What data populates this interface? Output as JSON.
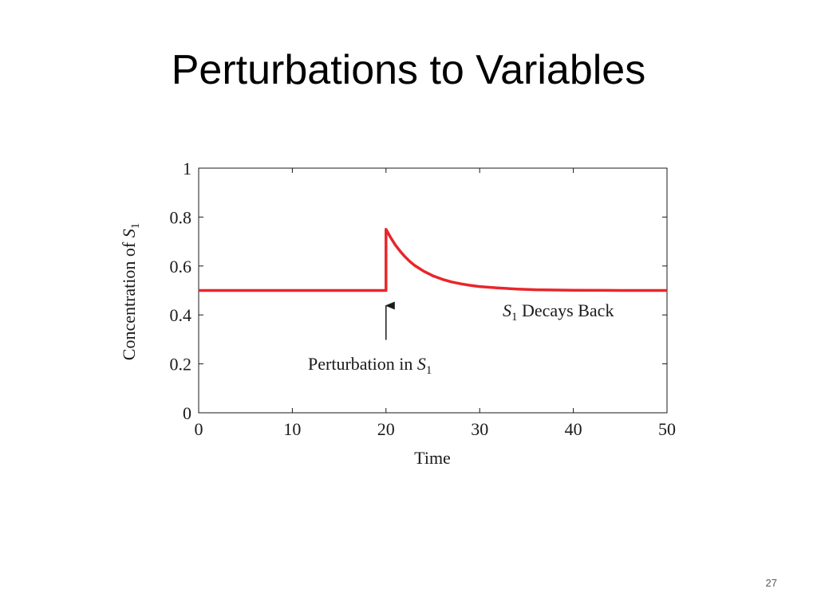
{
  "slide": {
    "title": "Perturbations to Variables",
    "number": "27"
  },
  "chart_data": {
    "type": "line",
    "xlabel": "Time",
    "ylabel": "Concentration of S1",
    "ylabel_parts": {
      "text": "Concentration of ",
      "var": "S",
      "sub": "1"
    },
    "xlim": [
      0,
      50
    ],
    "ylim": [
      0,
      1
    ],
    "x_ticks": [
      0,
      10,
      20,
      30,
      40,
      50
    ],
    "x_tick_labels": [
      "0",
      "10",
      "20",
      "30",
      "40",
      "50"
    ],
    "y_ticks": [
      0,
      0.2,
      0.4,
      0.6,
      0.8,
      1
    ],
    "y_tick_labels": [
      "0",
      "0.2",
      "0.4",
      "0.6",
      "0.8",
      "1"
    ],
    "grid": false,
    "line_color": "#e8262a",
    "series": [
      {
        "x": [
          0,
          20,
          20,
          20.5,
          21,
          21.5,
          22,
          22.5,
          23,
          24,
          25,
          26,
          27,
          28,
          29,
          30,
          32,
          34,
          36,
          40,
          45,
          50
        ],
        "y": [
          0.5,
          0.5,
          0.75,
          0.716,
          0.686,
          0.661,
          0.639,
          0.62,
          0.604,
          0.579,
          0.56,
          0.546,
          0.535,
          0.527,
          0.521,
          0.516,
          0.51,
          0.506,
          0.503,
          0.501,
          0.5,
          0.5
        ]
      }
    ],
    "annotations": [
      {
        "text": "Perturbation in S1",
        "parts": {
          "text": "Perturbation in ",
          "var": "S",
          "sub": "1"
        },
        "arrow_to": {
          "x": 20,
          "y": 0.5
        }
      },
      {
        "text": "S1 Decays Back",
        "parts": {
          "var": "S",
          "sub": "1",
          "text": " Decays Back"
        }
      }
    ]
  }
}
